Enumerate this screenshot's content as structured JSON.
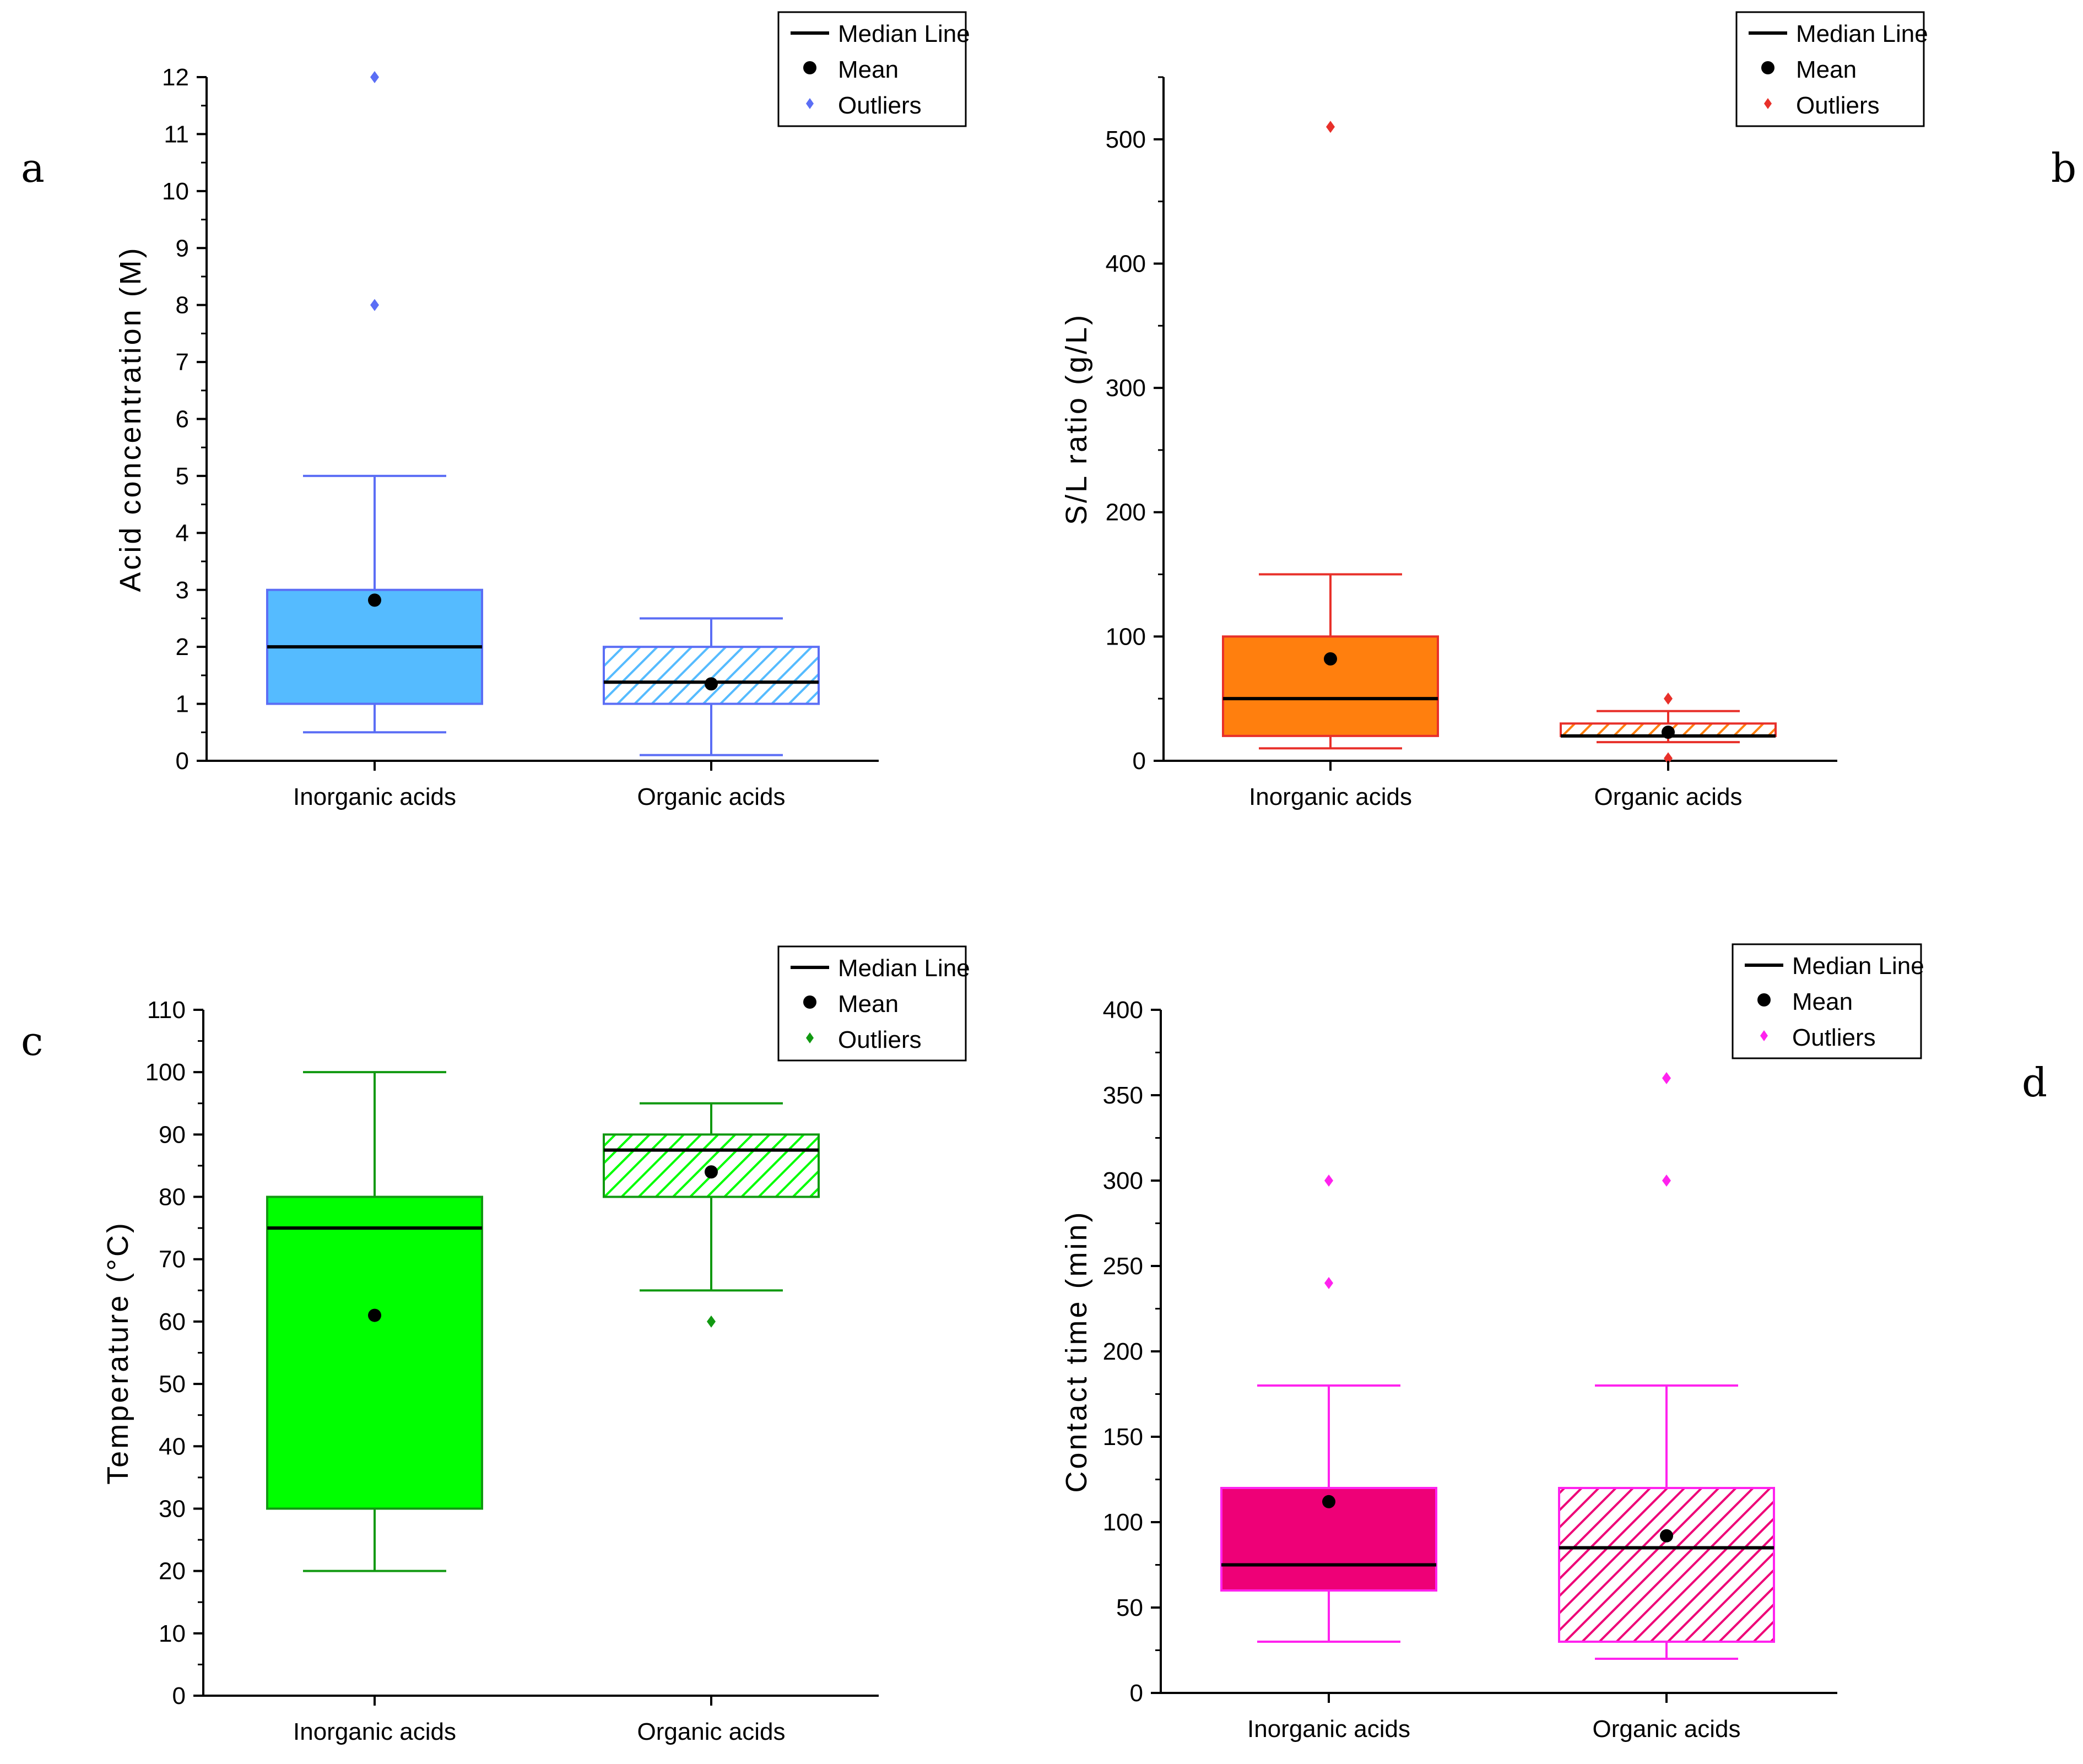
{
  "chart_data": [
    {
      "panel": "a",
      "type": "box",
      "ylabel": "Acid concentration (M)",
      "ylim": [
        0,
        12
      ],
      "yticks": [
        0,
        1,
        2,
        3,
        4,
        5,
        6,
        7,
        8,
        9,
        10,
        11,
        12
      ],
      "categories": [
        "Inorganic acids",
        "Organic acids"
      ],
      "color": "#5b6ef5",
      "fill_color": "#55bbff",
      "legend": [
        "Median Line",
        "Mean",
        "Outliers"
      ],
      "boxes": [
        {
          "category": "Inorganic acids",
          "whisker_low": 0.5,
          "q1": 1,
          "median": 2,
          "q3": 3,
          "whisker_high": 5,
          "mean": 2.82,
          "outliers": [
            8,
            12
          ],
          "pattern": "solid"
        },
        {
          "category": "Organic acids",
          "whisker_low": 0.1,
          "q1": 1,
          "median": 1.38,
          "q3": 2,
          "whisker_high": 2.5,
          "mean": 1.35,
          "outliers": [],
          "pattern": "hatched"
        }
      ]
    },
    {
      "panel": "b",
      "type": "box",
      "ylabel": "S/L ratio (g/L)",
      "ylim": [
        0,
        550
      ],
      "yticks": [
        0,
        100,
        200,
        300,
        400,
        500
      ],
      "categories": [
        "Inorganic acids",
        "Organic acids"
      ],
      "color": "#e8302a",
      "fill_color": "#ff7f0e",
      "legend": [
        "Median Line",
        "Mean",
        "Outliers"
      ],
      "boxes": [
        {
          "category": "Inorganic acids",
          "whisker_low": 10,
          "q1": 20,
          "median": 50,
          "q3": 100,
          "whisker_high": 150,
          "mean": 82,
          "outliers": [
            510
          ],
          "pattern": "solid"
        },
        {
          "category": "Organic acids",
          "whisker_low": 15,
          "q1": 20,
          "median": 20,
          "q3": 30,
          "whisker_high": 40,
          "mean": 23,
          "outliers": [
            50,
            2
          ],
          "pattern": "hatched"
        }
      ]
    },
    {
      "panel": "c",
      "type": "box",
      "ylabel": "Temperature (°C)",
      "ylim": [
        0,
        110
      ],
      "yticks": [
        0,
        10,
        20,
        30,
        40,
        50,
        60,
        70,
        80,
        90,
        100,
        110
      ],
      "categories": [
        "Inorganic acids",
        "Organic acids"
      ],
      "color": "#119911",
      "fill_color": "#00ff00",
      "legend": [
        "Median Line",
        "Mean",
        "Outliers"
      ],
      "boxes": [
        {
          "category": "Inorganic acids",
          "whisker_low": 20,
          "q1": 30,
          "median": 75,
          "q3": 80,
          "whisker_high": 100,
          "mean": 61,
          "outliers": [],
          "pattern": "solid"
        },
        {
          "category": "Organic acids",
          "whisker_low": 65,
          "q1": 80,
          "median": 87.5,
          "q3": 90,
          "whisker_high": 95,
          "mean": 84,
          "outliers": [
            60
          ],
          "pattern": "hatched"
        }
      ]
    },
    {
      "panel": "d",
      "type": "box",
      "ylabel": "Contact time (min)",
      "ylim": [
        0,
        400
      ],
      "yticks": [
        0,
        50,
        100,
        150,
        200,
        250,
        300,
        350,
        400
      ],
      "categories": [
        "Inorganic acids",
        "Organic acids"
      ],
      "color": "#ff22ee",
      "fill_color": "#ee0077",
      "legend": [
        "Median Line",
        "Mean",
        "Outliers"
      ],
      "boxes": [
        {
          "category": "Inorganic acids",
          "whisker_low": 30,
          "q1": 60,
          "median": 75,
          "q3": 120,
          "whisker_high": 180,
          "mean": 112,
          "outliers": [
            240,
            300
          ],
          "pattern": "solid"
        },
        {
          "category": "Organic acids",
          "whisker_low": 20,
          "q1": 30,
          "median": 85,
          "q3": 120,
          "whisker_high": 180,
          "mean": 92,
          "outliers": [
            300,
            360
          ],
          "pattern": "hatched"
        }
      ]
    }
  ]
}
